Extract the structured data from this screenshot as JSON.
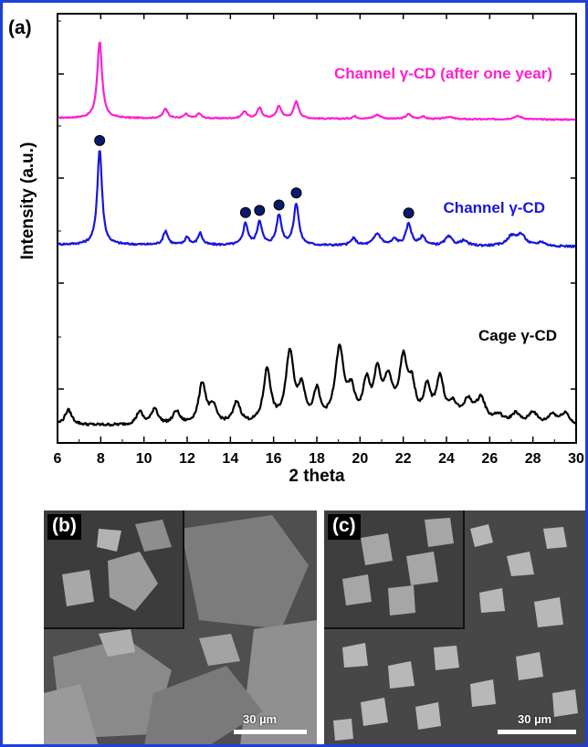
{
  "panel_a": {
    "label": "(a)"
  },
  "panel_b": {
    "label": "(b)",
    "scale_bar_text": "30 µm"
  },
  "panel_c": {
    "label": "(c)",
    "scale_bar_text": "30 µm"
  },
  "colors": {
    "frame": "#1f3fd6",
    "magenta": "#ff1fd0",
    "blue": "#1616e0",
    "black": "#000000",
    "marker": "#0b1a6e"
  },
  "chart_data": {
    "type": "line",
    "title": "",
    "xlabel": "2 theta",
    "ylabel": "Intensity (a.u.)",
    "xlim": [
      6,
      30
    ],
    "xticks": [
      "6",
      "8",
      "10",
      "12",
      "14",
      "16",
      "18",
      "20",
      "22",
      "24",
      "26",
      "28",
      "30"
    ],
    "series": [
      {
        "name": "Channel γ-CD (after one year)",
        "color": "#ff1fd0",
        "baseline": 0.97,
        "noise": 0.015,
        "peaks": [
          [
            7.95,
            0.96,
            0.13
          ],
          [
            11.0,
            0.12,
            0.13
          ],
          [
            11.95,
            0.05,
            0.12
          ],
          [
            12.55,
            0.06,
            0.12
          ],
          [
            14.65,
            0.09,
            0.13
          ],
          [
            15.35,
            0.13,
            0.13
          ],
          [
            16.25,
            0.15,
            0.14
          ],
          [
            17.05,
            0.21,
            0.14
          ],
          [
            19.75,
            0.03,
            0.15
          ],
          [
            20.8,
            0.05,
            0.2
          ],
          [
            22.25,
            0.06,
            0.15
          ],
          [
            22.9,
            0.03,
            0.15
          ],
          [
            24.1,
            0.03,
            0.2
          ],
          [
            27.3,
            0.04,
            0.25
          ]
        ]
      },
      {
        "name": "Channel γ-CD",
        "color": "#1616e0",
        "baseline": 0.97,
        "noise": 0.02,
        "peaks": [
          [
            7.95,
            0.97,
            0.13
          ],
          [
            11.0,
            0.14,
            0.13
          ],
          [
            12.0,
            0.08,
            0.12
          ],
          [
            12.6,
            0.12,
            0.12
          ],
          [
            14.7,
            0.22,
            0.13
          ],
          [
            15.35,
            0.24,
            0.13
          ],
          [
            16.25,
            0.3,
            0.14
          ],
          [
            17.05,
            0.42,
            0.14
          ],
          [
            19.7,
            0.07,
            0.15
          ],
          [
            20.8,
            0.12,
            0.2
          ],
          [
            21.6,
            0.06,
            0.15
          ],
          [
            22.25,
            0.22,
            0.15
          ],
          [
            22.9,
            0.09,
            0.15
          ],
          [
            24.1,
            0.09,
            0.2
          ],
          [
            24.8,
            0.05,
            0.2
          ],
          [
            27.0,
            0.09,
            0.25
          ],
          [
            27.45,
            0.11,
            0.25
          ],
          [
            28.4,
            0.04,
            0.2
          ]
        ],
        "markers_at_2theta": [
          7.95,
          14.7,
          15.35,
          16.25,
          17.05,
          22.25
        ]
      },
      {
        "name": "Cage γ-CD",
        "color": "#000000",
        "baseline": 0.98,
        "noise": 0.025,
        "peaks": [
          [
            6.5,
            0.14,
            0.2
          ],
          [
            9.8,
            0.12,
            0.18
          ],
          [
            10.5,
            0.15,
            0.18
          ],
          [
            11.5,
            0.12,
            0.18
          ],
          [
            12.7,
            0.38,
            0.2
          ],
          [
            13.2,
            0.15,
            0.2
          ],
          [
            14.3,
            0.2,
            0.2
          ],
          [
            15.7,
            0.5,
            0.2
          ],
          [
            16.75,
            0.65,
            0.22
          ],
          [
            17.3,
            0.3,
            0.2
          ],
          [
            18.0,
            0.28,
            0.18
          ],
          [
            19.05,
            0.68,
            0.25
          ],
          [
            19.6,
            0.25,
            0.2
          ],
          [
            20.3,
            0.35,
            0.2
          ],
          [
            20.8,
            0.42,
            0.18
          ],
          [
            21.3,
            0.38,
            0.25
          ],
          [
            22.0,
            0.55,
            0.22
          ],
          [
            22.4,
            0.3,
            0.2
          ],
          [
            23.1,
            0.3,
            0.2
          ],
          [
            23.7,
            0.4,
            0.22
          ],
          [
            24.3,
            0.15,
            0.25
          ],
          [
            25.0,
            0.2,
            0.3
          ],
          [
            25.6,
            0.22,
            0.25
          ],
          [
            26.4,
            0.08,
            0.3
          ],
          [
            27.2,
            0.1,
            0.25
          ],
          [
            28.0,
            0.12,
            0.25
          ],
          [
            28.9,
            0.1,
            0.25
          ],
          [
            29.5,
            0.12,
            0.25
          ]
        ]
      }
    ]
  }
}
